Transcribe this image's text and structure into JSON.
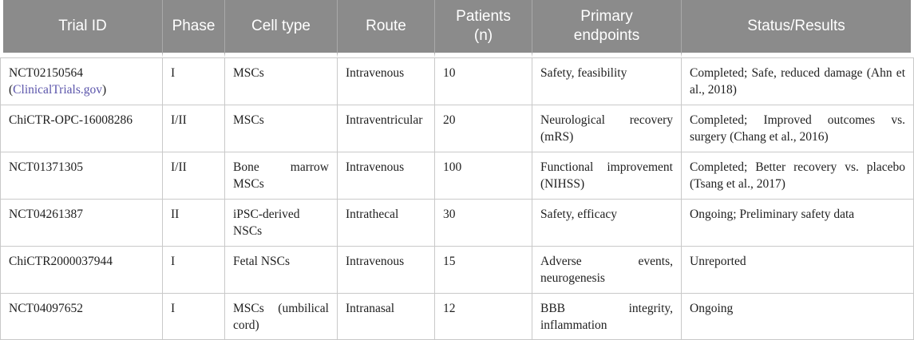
{
  "colors": {
    "header_bg": "#8b8b8b",
    "header_divider": "#a9a9a9",
    "header_text": "#ffffff",
    "grid_border": "#c9c9c9",
    "body_text": "#1f1f1f",
    "link": "#5b55ab"
  },
  "table": {
    "columns": [
      {
        "key": "trial_id",
        "label": "Trial ID"
      },
      {
        "key": "phase",
        "label": "Phase"
      },
      {
        "key": "cell_type",
        "label": "Cell type"
      },
      {
        "key": "route",
        "label": "Route"
      },
      {
        "key": "patients_n",
        "label": "Patients\n(n)"
      },
      {
        "key": "primary_endpoints",
        "label": "Primary\nendpoints"
      },
      {
        "key": "status_results",
        "label": "Status/Results"
      }
    ],
    "rows": [
      {
        "trial_id": "NCT02150564",
        "trial_id_link": {
          "prefix": "(",
          "text": "ClinicalTrials.gov",
          "suffix": ")"
        },
        "phase": "I",
        "cell_type": "MSCs",
        "route": "Intravenous",
        "patients_n": "10",
        "primary_endpoints": "Safety, feasibility",
        "status_results": "Completed; Safe, reduced damage (Ahn et al., 2018)"
      },
      {
        "trial_id": "ChiCTR-OPC-16008286",
        "phase": "I/II",
        "cell_type": "MSCs",
        "route": "Intraventricular",
        "patients_n": "20",
        "primary_endpoints": "Neurological recovery (mRS)",
        "status_results": "Completed; Improved outcomes vs. surgery (Chang et al., 2016)"
      },
      {
        "trial_id": "NCT01371305",
        "phase": "I/II",
        "cell_type": "Bone marrow MSCs",
        "route": "Intravenous",
        "patients_n": "100",
        "primary_endpoints": "Functional improvement (NIHSS)",
        "status_results": "Completed; Better recovery vs. placebo (Tsang et al., 2017)"
      },
      {
        "trial_id": "NCT04261387",
        "phase": "II",
        "cell_type": "iPSC-derived NSCs",
        "route": "Intrathecal",
        "patients_n": "30",
        "primary_endpoints": "Safety, efficacy",
        "status_results": "Ongoing; Preliminary safety data"
      },
      {
        "trial_id": "ChiCTR2000037944",
        "phase": "I",
        "cell_type": "Fetal NSCs",
        "route": "Intravenous",
        "patients_n": "15",
        "primary_endpoints": "Adverse events, neurogenesis",
        "status_results": "Unreported"
      },
      {
        "trial_id": "NCT04097652",
        "phase": "I",
        "cell_type": "MSCs (umbilical cord)",
        "route": "Intranasal",
        "patients_n": "12",
        "primary_endpoints": "BBB integrity, inflammation",
        "status_results": "Ongoing"
      }
    ]
  }
}
